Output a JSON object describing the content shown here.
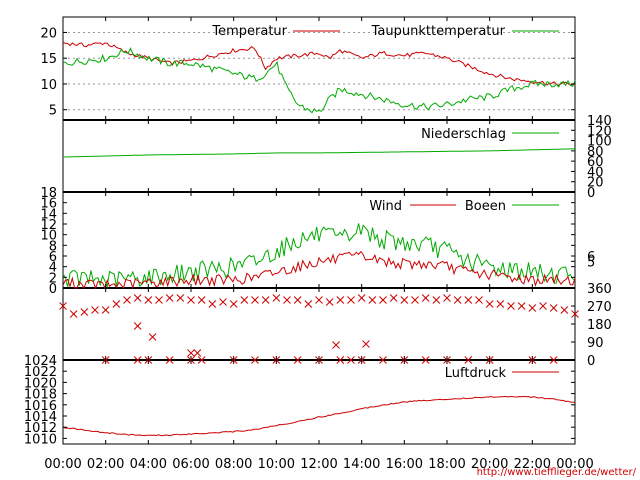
{
  "chart_data": [
    {
      "type": "line",
      "panel": "temperature",
      "ylim": [
        3,
        23
      ],
      "y_ticks": [
        5,
        10,
        15,
        20
      ],
      "grid": true,
      "legend_placement": "top",
      "series": [
        {
          "name": "Temperatur",
          "color": "#cc0000",
          "x": [
            0,
            1,
            2,
            3,
            4,
            5,
            6,
            7,
            8,
            9,
            9.5,
            10,
            11,
            12,
            12.5,
            13,
            14,
            15,
            16,
            17,
            18,
            19,
            20,
            21,
            22,
            23,
            24
          ],
          "y": [
            18,
            17.5,
            18,
            16,
            15,
            14,
            14.5,
            15.5,
            16.5,
            17,
            13,
            15,
            15.5,
            16,
            15,
            16.5,
            15,
            16,
            15.5,
            16,
            15,
            13.5,
            12,
            11,
            10.5,
            10,
            10
          ]
        },
        {
          "name": "Taupunkttemperatur",
          "color": "#00aa00",
          "x": [
            0,
            1,
            2,
            3,
            4,
            5,
            6,
            7,
            8,
            9,
            9.5,
            10,
            10.5,
            11,
            11.5,
            12,
            12.5,
            13,
            14,
            15,
            16,
            17,
            18,
            19,
            20,
            21,
            22,
            23,
            24
          ],
          "y": [
            14,
            14.5,
            15,
            16.5,
            15,
            14,
            14,
            13,
            12,
            11,
            12,
            14,
            9,
            6,
            5,
            4.5,
            7,
            9,
            8,
            7,
            6,
            5.5,
            6,
            7,
            7.5,
            9,
            10,
            10,
            10
          ]
        }
      ]
    },
    {
      "type": "line",
      "panel": "precipitation",
      "ylim": [
        0,
        140
      ],
      "y_ticks_right": [
        0,
        20,
        40,
        60,
        80,
        100,
        120,
        140
      ],
      "series": [
        {
          "name": "Niederschlag",
          "color": "#00aa00",
          "x": [
            0,
            2,
            4,
            6,
            8,
            10,
            12,
            14,
            16,
            18,
            20,
            22,
            24
          ],
          "y": [
            68,
            70,
            72,
            73,
            74,
            76,
            76,
            77,
            78,
            79,
            80,
            82,
            84
          ]
        }
      ]
    },
    {
      "type": "line",
      "panel": "wind",
      "ylim": [
        0,
        18
      ],
      "y_ticks": [
        0,
        2,
        4,
        6,
        8,
        10,
        12,
        14,
        16,
        18
      ],
      "y_ticks_right": [
        5,
        6
      ],
      "series": [
        {
          "name": "Wind",
          "color": "#cc0000",
          "x": [
            0,
            2,
            4,
            6,
            8,
            9,
            10,
            11,
            12,
            13,
            14,
            15,
            16,
            17,
            18,
            19,
            20,
            21,
            22,
            23,
            24
          ],
          "y": [
            1,
            0.5,
            1,
            1.5,
            1.5,
            2,
            3,
            4,
            5,
            5.5,
            6,
            5,
            4.5,
            4.5,
            4,
            3,
            2.5,
            2,
            1.5,
            1.5,
            1.5
          ]
        },
        {
          "name": "Boeen",
          "color": "#00aa00",
          "x": [
            0,
            2,
            4,
            6,
            8,
            9,
            10,
            11,
            12,
            13,
            14,
            15,
            16,
            17,
            18,
            19,
            20,
            21,
            22,
            23,
            24
          ],
          "y": [
            2,
            1.5,
            2,
            3,
            4,
            5,
            7,
            9,
            10,
            9,
            11,
            9,
            8.5,
            8,
            7,
            5,
            4,
            3.5,
            3,
            2.5,
            3
          ]
        }
      ]
    },
    {
      "type": "scatter",
      "panel": "wind_direction",
      "ylim": [
        0,
        360
      ],
      "y_ticks_right": [
        0,
        90,
        180,
        270,
        360
      ],
      "series": [
        {
          "name": "",
          "color": "#cc0000",
          "x": [
            0,
            0.5,
            1,
            1.5,
            2,
            2.5,
            3,
            3.5,
            4,
            4.5,
            5,
            5.5,
            6,
            6.5,
            7,
            7.5,
            8,
            8.5,
            9,
            9.5,
            10,
            10.5,
            11,
            11.5,
            12,
            12.5,
            13,
            13.5,
            14,
            14.5,
            15,
            15.5,
            16,
            16.5,
            17,
            17.5,
            18,
            18.5,
            19,
            19.5,
            20,
            20.5,
            21,
            21.5,
            22,
            22.5,
            23,
            23.5,
            24
          ],
          "y": [
            270,
            230,
            240,
            250,
            250,
            280,
            300,
            310,
            300,
            300,
            310,
            310,
            300,
            300,
            280,
            290,
            280,
            300,
            300,
            300,
            310,
            300,
            300,
            280,
            300,
            290,
            300,
            300,
            310,
            300,
            300,
            310,
            300,
            300,
            310,
            300,
            310,
            300,
            300,
            300,
            280,
            280,
            270,
            270,
            260,
            270,
            260,
            250,
            230
          ]
        },
        {
          "name": "",
          "color": "#cc0000",
          "x": [
            2,
            3.5,
            4,
            5,
            6,
            6.5,
            8,
            9,
            10,
            11,
            12,
            13,
            13.5,
            14,
            15,
            16,
            17,
            18,
            19,
            20,
            22,
            23
          ],
          "y": [
            0,
            0,
            0,
            0,
            0,
            0,
            0,
            0,
            0,
            0,
            0,
            0,
            0,
            0,
            0,
            0,
            0,
            0,
            0,
            0,
            0,
            0
          ]
        },
        {
          "name": "",
          "color": "#cc0000",
          "x": [
            4.2,
            6,
            6.3,
            12.8,
            14.2,
            3.5
          ],
          "y": [
            115,
            35,
            35,
            75,
            80,
            170
          ]
        }
      ]
    },
    {
      "type": "line",
      "panel": "pressure",
      "ylim": [
        1009,
        1024
      ],
      "y_ticks": [
        1010,
        1012,
        1014,
        1016,
        1018,
        1020,
        1022,
        1024
      ],
      "series": [
        {
          "name": "Luftdruck",
          "color": "#cc0000",
          "x": [
            0,
            1,
            2,
            3,
            4,
            5,
            6,
            7,
            8,
            9,
            10,
            11,
            12,
            13,
            14,
            15,
            16,
            17,
            18,
            19,
            20,
            21,
            22,
            23,
            24
          ],
          "y": [
            1012,
            1011.5,
            1011,
            1010.7,
            1010.5,
            1010.6,
            1010.8,
            1011,
            1011.2,
            1011.6,
            1012.3,
            1013,
            1013.8,
            1014.5,
            1015.3,
            1016,
            1016.5,
            1016.8,
            1017,
            1017.2,
            1017.4,
            1017.5,
            1017.4,
            1017,
            1016.4
          ]
        }
      ]
    }
  ],
  "x_axis": {
    "ticks": [
      "00:00",
      "02:00",
      "04:00",
      "06:00",
      "08:00",
      "10:00",
      "12:00",
      "14:00",
      "16:00",
      "18:00",
      "20:00",
      "22:00",
      "00:00"
    ]
  },
  "url": "http://www.tiefflieger.de/wetter/"
}
